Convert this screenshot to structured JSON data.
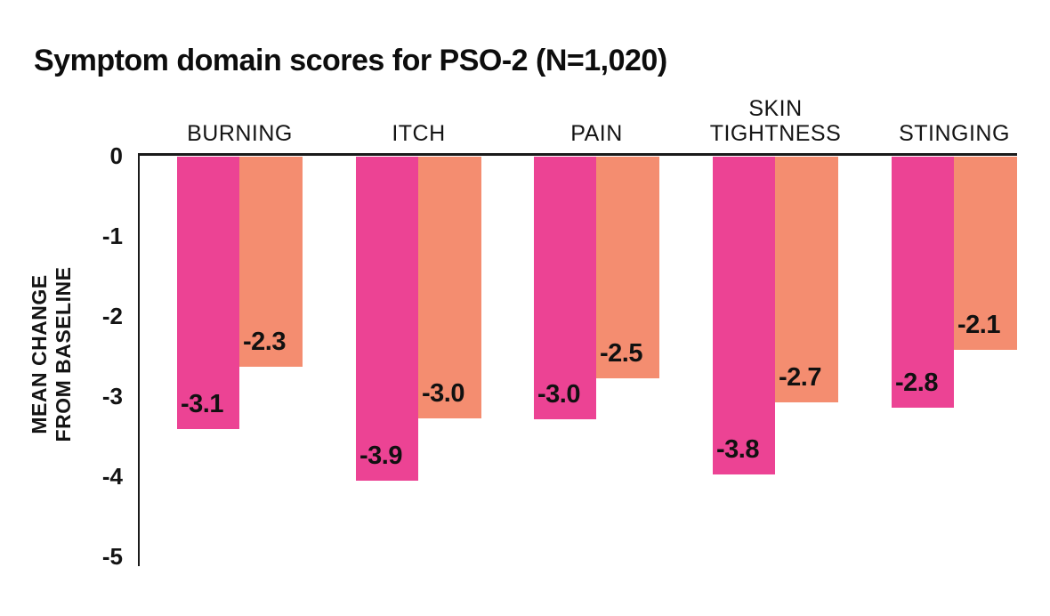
{
  "page": {
    "background_color": "#ffffff",
    "text_color": "#101010"
  },
  "chart_data": {
    "type": "bar",
    "title": "Symptom domain scores for PSO-2 (N=1,020)",
    "orientation": "vertical-negative",
    "categories": [
      "BURNING",
      "ITCH",
      "PAIN",
      "SKIN TIGHTNESS",
      "STINGING"
    ],
    "category_label_lines": [
      [
        "BURNING"
      ],
      [
        "ITCH"
      ],
      [
        "PAIN"
      ],
      [
        "SKIN",
        "TIGHTNESS"
      ],
      [
        "STINGING"
      ]
    ],
    "series": [
      {
        "name": "pink-series",
        "color": "#EC4394",
        "values": [
          -3.1,
          -3.9,
          -3.0,
          -3.8,
          -2.8
        ],
        "value_labels": [
          "-3.1",
          "-3.9",
          "-3.0",
          "-3.8",
          "-2.8"
        ],
        "plotted_depth_units": [
          3.4,
          4.04,
          3.28,
          3.97,
          3.13
        ]
      },
      {
        "name": "salmon-series",
        "color": "#F48D70",
        "values": [
          -2.3,
          -3.0,
          -2.5,
          -2.7,
          -2.1
        ],
        "value_labels": [
          "-2.3",
          "-3.0",
          "-2.5",
          "-2.7",
          "-2.1"
        ],
        "plotted_depth_units": [
          2.62,
          3.27,
          2.77,
          3.07,
          2.41
        ]
      }
    ],
    "ylabel": "MEAN CHANGE FROM BASELINE",
    "ylabel_lines": [
      "MEAN CHANGE",
      "FROM BASELINE"
    ],
    "yticks": [
      "0",
      "-1",
      "-2",
      "-3",
      "-4",
      "-5"
    ],
    "ylim": [
      0,
      -5
    ],
    "grid": false,
    "legend": "none",
    "axis_color": "#1a1a1a",
    "value_label_color": "#111111"
  }
}
